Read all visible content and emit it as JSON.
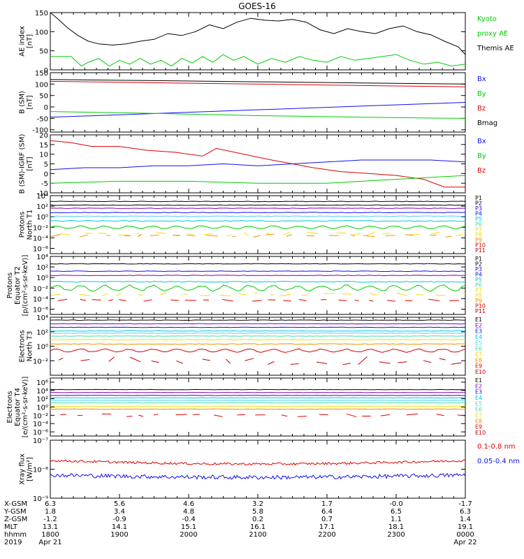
{
  "title": "GOES-16",
  "colors": {
    "black": "#000000",
    "blue": "#1010ee",
    "green": "#00cc00",
    "red": "#dd0000",
    "purple": "#8000b0",
    "cyan": "#00c8e0",
    "yellow": "#f0e000",
    "orange": "#f09000",
    "lightcyan": "#50d0f0",
    "mint": "#40e0a0",
    "darkred": "#c00000"
  },
  "xaxis": {
    "ephem_labels": [
      "X-GSM",
      "Y-GSM",
      "Z-GSM",
      "MLT",
      "hhmm",
      "2019"
    ],
    "columns": [
      {
        "x_hour": 18,
        "xgsm": "6.3",
        "ygsm": "1.8",
        "zgsm": "-1.2",
        "mlt": "13.1",
        "hhmm": "1800",
        "date": "Apr 21"
      },
      {
        "x_hour": 19,
        "xgsm": "5.6",
        "ygsm": "3.4",
        "zgsm": "-0.9",
        "mlt": "14.1",
        "hhmm": "1900",
        "date": ""
      },
      {
        "x_hour": 20,
        "xgsm": "4.6",
        "ygsm": "4.8",
        "zgsm": "-0.4",
        "mlt": "15.1",
        "hhmm": "2000",
        "date": ""
      },
      {
        "x_hour": 21,
        "xgsm": "3.2",
        "ygsm": "5.8",
        "zgsm": "0.2",
        "mlt": "16.1",
        "hhmm": "2100",
        "date": ""
      },
      {
        "x_hour": 22,
        "xgsm": "1.7",
        "ygsm": "6.4",
        "zgsm": "0.7",
        "mlt": "17.1",
        "hhmm": "2200",
        "date": ""
      },
      {
        "x_hour": 23,
        "xgsm": "-0.0",
        "ygsm": "6.5",
        "zgsm": "1.1",
        "mlt": "18.1",
        "hhmm": "2300",
        "date": ""
      },
      {
        "x_hour": 24,
        "xgsm": "-1.7",
        "ygsm": "6.3",
        "zgsm": "1.4",
        "mlt": "19.1",
        "hhmm": "0000",
        "date": "Apr 22"
      }
    ]
  },
  "chart_data": [
    {
      "type": "line",
      "id": "ae",
      "ylabel": [
        "AE index",
        "[nT]"
      ],
      "ylim": [
        0,
        150
      ],
      "yticks": [
        0,
        50,
        100,
        150
      ],
      "legend": [
        {
          "text": "Kyoto",
          "color": "#00cc00"
        },
        {
          "text": "proxy AE",
          "color": "#00cc00"
        },
        {
          "text": "Themis AE",
          "color": "#000000"
        }
      ],
      "series": [
        {
          "color": "#000000",
          "x": [
            18.0,
            18.1,
            18.25,
            18.4,
            18.55,
            18.7,
            18.9,
            19.1,
            19.3,
            19.5,
            19.7,
            19.9,
            20.1,
            20.3,
            20.5,
            20.7,
            20.9,
            21.1,
            21.3,
            21.5,
            21.7,
            21.9,
            22.1,
            22.3,
            22.5,
            22.7,
            22.9,
            23.1,
            23.3,
            23.5,
            23.7,
            23.9,
            24.0
          ],
          "y": [
            150,
            135,
            110,
            90,
            75,
            68,
            65,
            68,
            75,
            80,
            95,
            90,
            100,
            118,
            108,
            125,
            135,
            130,
            128,
            132,
            125,
            105,
            95,
            108,
            100,
            95,
            108,
            115,
            100,
            92,
            75,
            60,
            40
          ]
        },
        {
          "color": "#00cc00",
          "x": [
            18.0,
            18.3,
            18.45,
            18.55,
            18.7,
            18.85,
            19.0,
            19.15,
            19.3,
            19.45,
            19.6,
            19.75,
            19.9,
            20.05,
            20.2,
            20.35,
            20.5,
            20.65,
            20.8,
            21.0,
            21.2,
            21.4,
            21.6,
            21.8,
            22.0,
            22.2,
            22.4,
            22.6,
            22.8,
            23.0,
            23.2,
            23.4,
            23.6,
            23.8,
            24.0
          ],
          "y": [
            35,
            35,
            10,
            20,
            30,
            10,
            25,
            15,
            30,
            15,
            25,
            10,
            30,
            18,
            35,
            20,
            40,
            25,
            35,
            15,
            30,
            20,
            35,
            25,
            20,
            35,
            25,
            30,
            35,
            40,
            25,
            15,
            20,
            10,
            15
          ]
        }
      ]
    },
    {
      "type": "line",
      "id": "bsm",
      "ylabel": [
        "B (SM)",
        "[nT]"
      ],
      "ylim": [
        -110,
        150
      ],
      "yticks": [
        -100,
        -50,
        0,
        50,
        100,
        150
      ],
      "legend": [
        {
          "text": "Bx",
          "color": "#1010ee"
        },
        {
          "text": "By",
          "color": "#00cc00"
        },
        {
          "text": "Bz",
          "color": "#dd0000"
        },
        {
          "text": "Bmag",
          "color": "#000000"
        }
      ],
      "series": [
        {
          "color": "#000000",
          "x": [
            18,
            24
          ],
          "y": [
            120,
            100
          ]
        },
        {
          "color": "#dd0000",
          "x": [
            18,
            24
          ],
          "y": [
            112,
            88
          ]
        },
        {
          "color": "#1010ee",
          "x": [
            18,
            24
          ],
          "y": [
            -45,
            20
          ]
        },
        {
          "color": "#00cc00",
          "x": [
            18,
            19.5,
            21,
            22.5,
            24
          ],
          "y": [
            -20,
            -28,
            -38,
            -45,
            -50
          ]
        }
      ]
    },
    {
      "type": "line",
      "id": "bigrf",
      "ylabel": [
        "B (SM)-IGRF (SM)",
        "[nT]"
      ],
      "ylim": [
        -10,
        20
      ],
      "yticks": [
        -10,
        -5,
        0,
        5,
        10,
        15,
        20
      ],
      "legend": [
        {
          "text": "Bx",
          "color": "#1010ee"
        },
        {
          "text": "By",
          "color": "#00cc00"
        },
        {
          "text": "Bz",
          "color": "#dd0000"
        }
      ],
      "series": [
        {
          "color": "#dd0000",
          "x": [
            18.0,
            18.3,
            18.6,
            19.0,
            19.4,
            19.8,
            20.2,
            20.4,
            20.8,
            21.2,
            21.5,
            21.8,
            22.2,
            22.6,
            23.0,
            23.4,
            23.7,
            24.0
          ],
          "y": [
            17,
            16,
            14,
            14,
            12,
            11,
            9,
            13,
            10,
            7,
            5,
            3,
            1,
            0,
            -1,
            -3,
            -7,
            -7
          ]
        },
        {
          "color": "#1010ee",
          "x": [
            18.0,
            18.5,
            19.0,
            19.5,
            20.0,
            20.5,
            21.0,
            21.5,
            22.0,
            22.5,
            23.0,
            23.5,
            24.0
          ],
          "y": [
            2,
            3,
            3,
            4,
            4,
            5,
            4,
            5,
            6,
            7,
            7,
            7,
            6
          ]
        },
        {
          "color": "#00cc00",
          "x": [
            18.0,
            19.0,
            20.0,
            21.0,
            22.0,
            22.5,
            23.0,
            23.5,
            24.0
          ],
          "y": [
            -5,
            -4,
            -4,
            -5,
            -5,
            -4,
            -3,
            -2,
            -1
          ]
        }
      ]
    },
    {
      "type": "line",
      "id": "p_north",
      "ylabel": [
        "Protons",
        "North T1"
      ],
      "ylog": true,
      "ylim_exp": [
        -7,
        4
      ],
      "ytick_exps": [
        -6,
        -4,
        -2,
        0,
        2,
        4
      ],
      "legend": [
        {
          "text": "P1",
          "color": "#000000"
        },
        {
          "text": "P2",
          "color": "#000000"
        },
        {
          "text": "P3",
          "color": "#1010ee"
        },
        {
          "text": "P4",
          "color": "#1010ee"
        },
        {
          "text": "P5",
          "color": "#00c8e0"
        },
        {
          "text": "P6",
          "color": "#40e0a0"
        },
        {
          "text": "P7",
          "color": "#f0e000"
        },
        {
          "text": "P8",
          "color": "#f0e000"
        },
        {
          "text": "P9",
          "color": "#f09000"
        },
        {
          "text": "P10",
          "color": "#dd0000"
        },
        {
          "text": "P11",
          "color": "#c00000"
        }
      ],
      "levels": [
        {
          "color": "#000000",
          "exp": 2.9,
          "noise": 0.05
        },
        {
          "color": "#000000",
          "exp": 2.2,
          "noise": 0.05
        },
        {
          "color": "#8000b0",
          "exp": 1.6,
          "noise": 0.05
        },
        {
          "color": "#1010ee",
          "exp": 0.8,
          "noise": 0.05
        },
        {
          "color": "#50d0f0",
          "exp": 0.1,
          "noise": 0.05
        },
        {
          "color": "#00c8e0",
          "exp": -0.8,
          "noise": 0.1
        },
        {
          "color": "#00cc00",
          "exp": -2.0,
          "noise": 0.25
        },
        {
          "color": "#f0e000",
          "exp": -3.3,
          "noise": 0.4,
          "broken": true
        },
        {
          "color": "#f09000",
          "exp": -3.6,
          "noise": 0.3,
          "broken": true
        }
      ]
    },
    {
      "type": "line",
      "id": "p_equator",
      "ylabel": [
        "Protons",
        "Equator T2",
        "[p/(cm²-s-sr-keV)]"
      ],
      "ylog": true,
      "ylim_exp": [
        -7,
        4
      ],
      "ytick_exps": [
        -6,
        -4,
        -2,
        0,
        2,
        4
      ],
      "legend": [
        {
          "text": "P1",
          "color": "#000000"
        },
        {
          "text": "P2",
          "color": "#000000"
        },
        {
          "text": "P3",
          "color": "#1010ee"
        },
        {
          "text": "P4",
          "color": "#1010ee"
        },
        {
          "text": "P5",
          "color": "#00c8e0"
        },
        {
          "text": "P6",
          "color": "#40e0a0"
        },
        {
          "text": "P7",
          "color": "#f0e000"
        },
        {
          "text": "P8",
          "color": "#f0e000"
        },
        {
          "text": "P9",
          "color": "#f09000"
        },
        {
          "text": "P10",
          "color": "#dd0000"
        },
        {
          "text": "P11",
          "color": "#c00000"
        }
      ],
      "levels": [
        {
          "color": "#000000",
          "exp": 2.6,
          "noise": 0.05
        },
        {
          "color": "#1010ee",
          "exp": 1.2,
          "noise": 0.05
        },
        {
          "color": "#8000b0",
          "exp": 0.4,
          "noise": 0.05
        },
        {
          "color": "#00c8e0",
          "exp": -0.8,
          "noise": 0.1
        },
        {
          "color": "#00cc00",
          "exp": -2.0,
          "noise": 0.5
        },
        {
          "color": "#f0e000",
          "exp": -3.2,
          "noise": 0.3,
          "broken": true
        },
        {
          "color": "#dd0000",
          "exp": -4.3,
          "noise": 0.2,
          "broken": true
        }
      ]
    },
    {
      "type": "line",
      "id": "e_north",
      "ylabel": [
        "Electrons",
        "North T3"
      ],
      "ylog": true,
      "ylim_exp": [
        -4,
        4
      ],
      "ytick_exps": [
        -2,
        0,
        2,
        4
      ],
      "legend": [
        {
          "text": "E1",
          "color": "#000000"
        },
        {
          "text": "E2",
          "color": "#8000b0"
        },
        {
          "text": "E3",
          "color": "#1010ee"
        },
        {
          "text": "E4",
          "color": "#00c8e0"
        },
        {
          "text": "E5",
          "color": "#50d0f0"
        },
        {
          "text": "E6",
          "color": "#40e0a0"
        },
        {
          "text": "E7",
          "color": "#f0e000"
        },
        {
          "text": "E8",
          "color": "#f09000"
        },
        {
          "text": "E9",
          "color": "#dd0000"
        },
        {
          "text": "E10",
          "color": "#c00000"
        }
      ],
      "levels": [
        {
          "color": "#000000",
          "exp": 3.6,
          "noise": 0.03
        },
        {
          "color": "#8000b0",
          "exp": 3.1,
          "noise": 0.03
        },
        {
          "color": "#1010ee",
          "exp": 2.6,
          "noise": 0.03
        },
        {
          "color": "#00c8e0",
          "exp": 2.1,
          "noise": 0.03
        },
        {
          "color": "#50d0f0",
          "exp": 1.8,
          "noise": 0.03
        },
        {
          "color": "#40e0a0",
          "exp": 1.4,
          "noise": 0.03
        },
        {
          "color": "#f0e000",
          "exp": 0.9,
          "noise": 0.03
        },
        {
          "color": "#f09000",
          "exp": 0.3,
          "noise": 0.05
        },
        {
          "color": "#dd0000",
          "exp": -0.6,
          "noise": 0.2
        },
        {
          "color": "#c00000",
          "exp": -2.0,
          "noise": 0.6,
          "broken": true
        }
      ]
    },
    {
      "type": "line",
      "id": "e_equator",
      "ylabel": [
        "Electrons",
        "Equator T4",
        "[e/(cm²-s-sr-keV)]"
      ],
      "ylog": true,
      "ylim_exp": [
        -7,
        7
      ],
      "ytick_exps": [
        -6,
        -4,
        -2,
        0,
        2,
        4,
        6
      ],
      "legend": [
        {
          "text": "E1",
          "color": "#000000"
        },
        {
          "text": "E2",
          "color": "#8000b0"
        },
        {
          "text": "E3",
          "color": "#1010ee"
        },
        {
          "text": "E4",
          "color": "#00c8e0"
        },
        {
          "text": "E5",
          "color": "#50d0f0"
        },
        {
          "text": "E6",
          "color": "#40e0a0"
        },
        {
          "text": "E7",
          "color": "#f0e000"
        },
        {
          "text": "E8",
          "color": "#f09000"
        },
        {
          "text": "E9",
          "color": "#dd0000"
        },
        {
          "text": "E10",
          "color": "#c00000"
        }
      ],
      "levels": [
        {
          "color": "#000000",
          "exp": 4.2,
          "noise": 0.03
        },
        {
          "color": "#8000b0",
          "exp": 3.5,
          "noise": 0.03
        },
        {
          "color": "#1010ee",
          "exp": 2.8,
          "noise": 0.03
        },
        {
          "color": "#00c8e0",
          "exp": 2.2,
          "noise": 0.03
        },
        {
          "color": "#50d0f0",
          "exp": 1.6,
          "noise": 0.03
        },
        {
          "color": "#40e0a0",
          "exp": 1.0,
          "noise": 0.03
        },
        {
          "color": "#f0e000",
          "exp": 0.2,
          "noise": 0.03
        },
        {
          "color": "#f09000",
          "exp": -0.5,
          "noise": 0.05
        },
        {
          "color": "#dd0000",
          "exp": -2.0,
          "noise": 0.4,
          "broken": true
        }
      ]
    },
    {
      "type": "line",
      "id": "xray",
      "ylabel": [
        "Xray flux",
        "[W/m²]"
      ],
      "ylog": true,
      "ylim_exp": [
        -9,
        -7
      ],
      "ytick_exps": [
        -9,
        -8,
        -7
      ],
      "legend": [
        {
          "text": "0.1-0.8 nm",
          "color": "#dd0000"
        },
        {
          "text": "0.05-0.4 nm",
          "color": "#1010ee"
        }
      ],
      "levels": [
        {
          "color": "#dd0000",
          "exp": -7.7,
          "noise": 0.04,
          "trend": -0.12
        },
        {
          "color": "#1010ee",
          "exp": -8.2,
          "noise": 0.07,
          "trend": -0.08
        }
      ]
    }
  ]
}
